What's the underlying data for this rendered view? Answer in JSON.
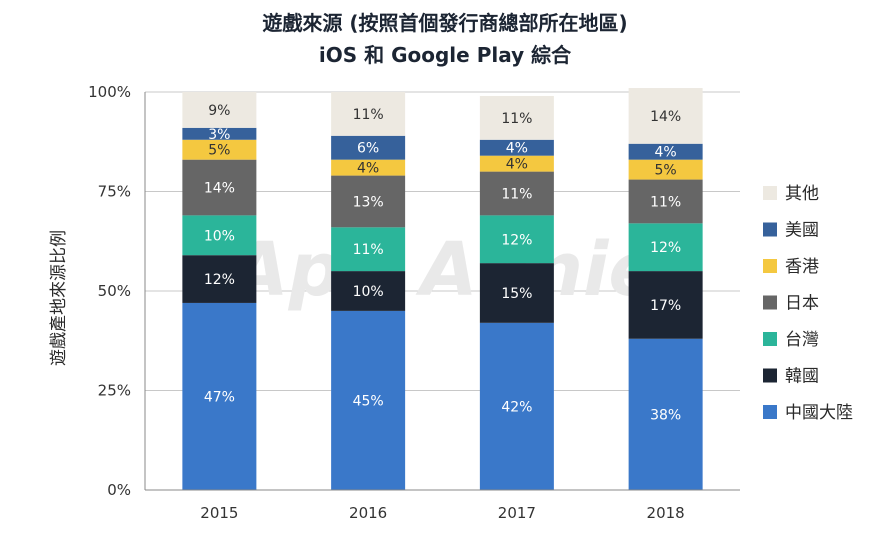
{
  "chart_data": {
    "type": "bar",
    "stacked": true,
    "title": "遊戲來源 (按照首個發行商總部所在地區)",
    "subtitle": "iOS 和 Google Play 綜合",
    "ylabel": "遊戲產地來源比例",
    "xlabel": "",
    "ylim": [
      0,
      100
    ],
    "y_ticks": [
      "0%",
      "25%",
      "50%",
      "75%",
      "100%"
    ],
    "y_tick_values": [
      0,
      25,
      50,
      75,
      100
    ],
    "grid": true,
    "legend_position": "right",
    "watermark": "App Annie",
    "categories": [
      "2015",
      "2016",
      "2017",
      "2018"
    ],
    "series": [
      {
        "name": "中國大陸",
        "color": "#3a78c9",
        "label_color": "#ffffff",
        "values": [
          47,
          45,
          42,
          38
        ]
      },
      {
        "name": "韓國",
        "color": "#1c2533",
        "label_color": "#ffffff",
        "values": [
          12,
          10,
          15,
          17
        ]
      },
      {
        "name": "台灣",
        "color": "#2bb59a",
        "label_color": "#ffffff",
        "values": [
          10,
          11,
          12,
          12
        ]
      },
      {
        "name": "日本",
        "color": "#666666",
        "label_color": "#ffffff",
        "values": [
          14,
          13,
          11,
          11
        ]
      },
      {
        "name": "香港",
        "color": "#f4c840",
        "label_color": "#333333",
        "values": [
          5,
          4,
          4,
          5
        ]
      },
      {
        "name": "美國",
        "color": "#36619b",
        "label_color": "#ffffff",
        "values": [
          3,
          6,
          4,
          4
        ]
      },
      {
        "name": "其他",
        "color": "#ede9e1",
        "label_color": "#333333",
        "values": [
          9,
          11,
          11,
          14
        ]
      }
    ],
    "legend_order": [
      "其他",
      "美國",
      "香港",
      "日本",
      "台灣",
      "韓國",
      "中國大陸"
    ],
    "grid_color": "#c8c8c8",
    "axis_color": "#888888"
  }
}
